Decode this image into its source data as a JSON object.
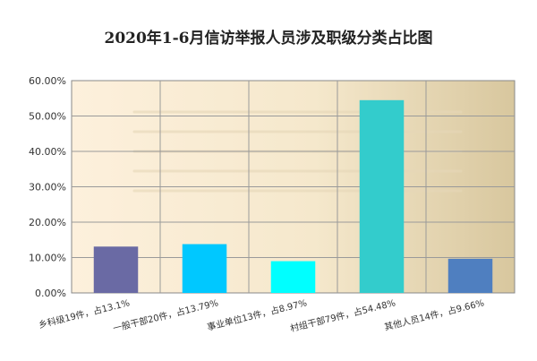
{
  "chart_data": {
    "type": "bar",
    "title": "2020年1-6月信访举报人员涉及职级分类占比图",
    "xlabel": "",
    "ylabel": "",
    "categories": [
      "乡科级19件，占13.1%",
      "一般干部20件，占13.79%",
      "事业单位13件，占8.97%",
      "村组干部79件，占54.48%",
      "其他人员14件，占9.66%"
    ],
    "values": [
      13.1,
      13.79,
      8.97,
      54.48,
      9.66
    ],
    "bar_colors": [
      "#6a6aa4",
      "#00c8ff",
      "#00ffff",
      "#33cccc",
      "#4f7fc0"
    ],
    "ylim": [
      0,
      60
    ],
    "yticks": [
      "0.00%",
      "10.00%",
      "20.00%",
      "30.00%",
      "40.00%",
      "50.00%",
      "60.00%"
    ],
    "grid": true,
    "legend": "none"
  }
}
